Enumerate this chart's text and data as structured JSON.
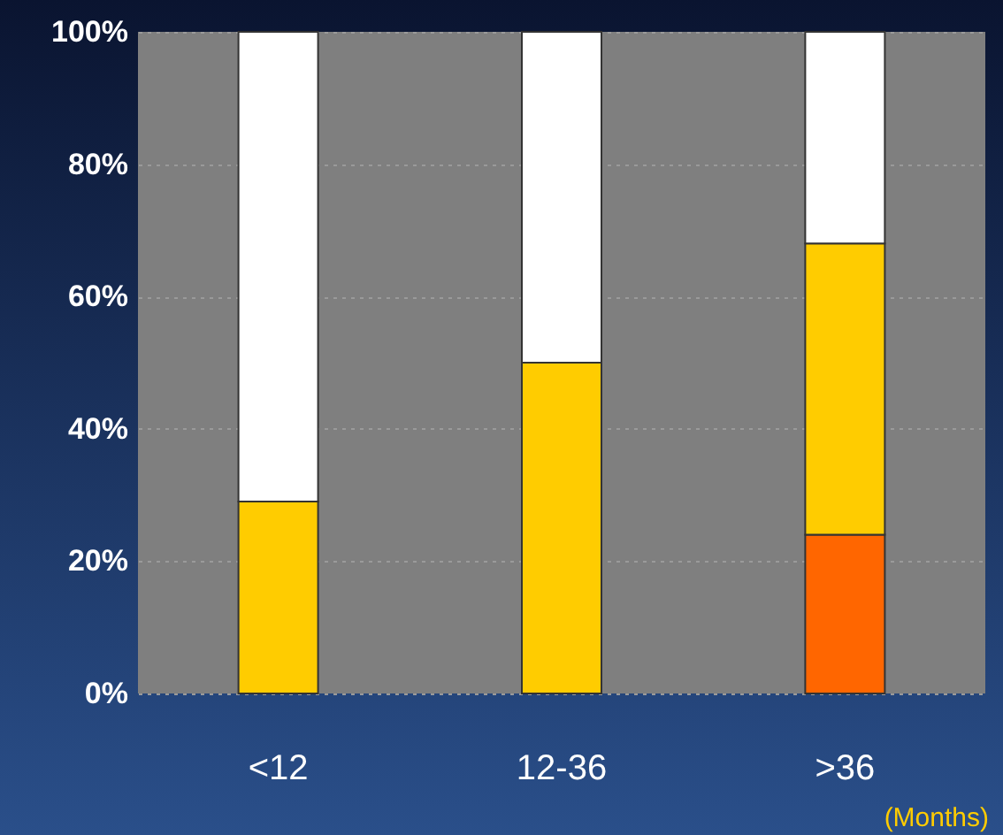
{
  "chart_data": {
    "type": "bar",
    "stacked": true,
    "categories": [
      "<12",
      "12-36",
      ">36"
    ],
    "series": [
      {
        "color": "#ff6600",
        "values": [
          0,
          0,
          24
        ]
      },
      {
        "color": "#ffcc00",
        "values": [
          29,
          50,
          44
        ]
      },
      {
        "color": "#ffffff",
        "values": [
          71,
          50,
          32
        ]
      }
    ],
    "ylim": [
      0,
      100
    ],
    "yticks": [
      {
        "value": 0,
        "label": "0%"
      },
      {
        "value": 20,
        "label": "20%"
      },
      {
        "value": 40,
        "label": "40%"
      },
      {
        "value": 60,
        "label": "60%"
      },
      {
        "value": 80,
        "label": "80%"
      },
      {
        "value": 100,
        "label": "100%"
      }
    ],
    "grid": "y",
    "annotations": [
      "(Months)"
    ]
  }
}
